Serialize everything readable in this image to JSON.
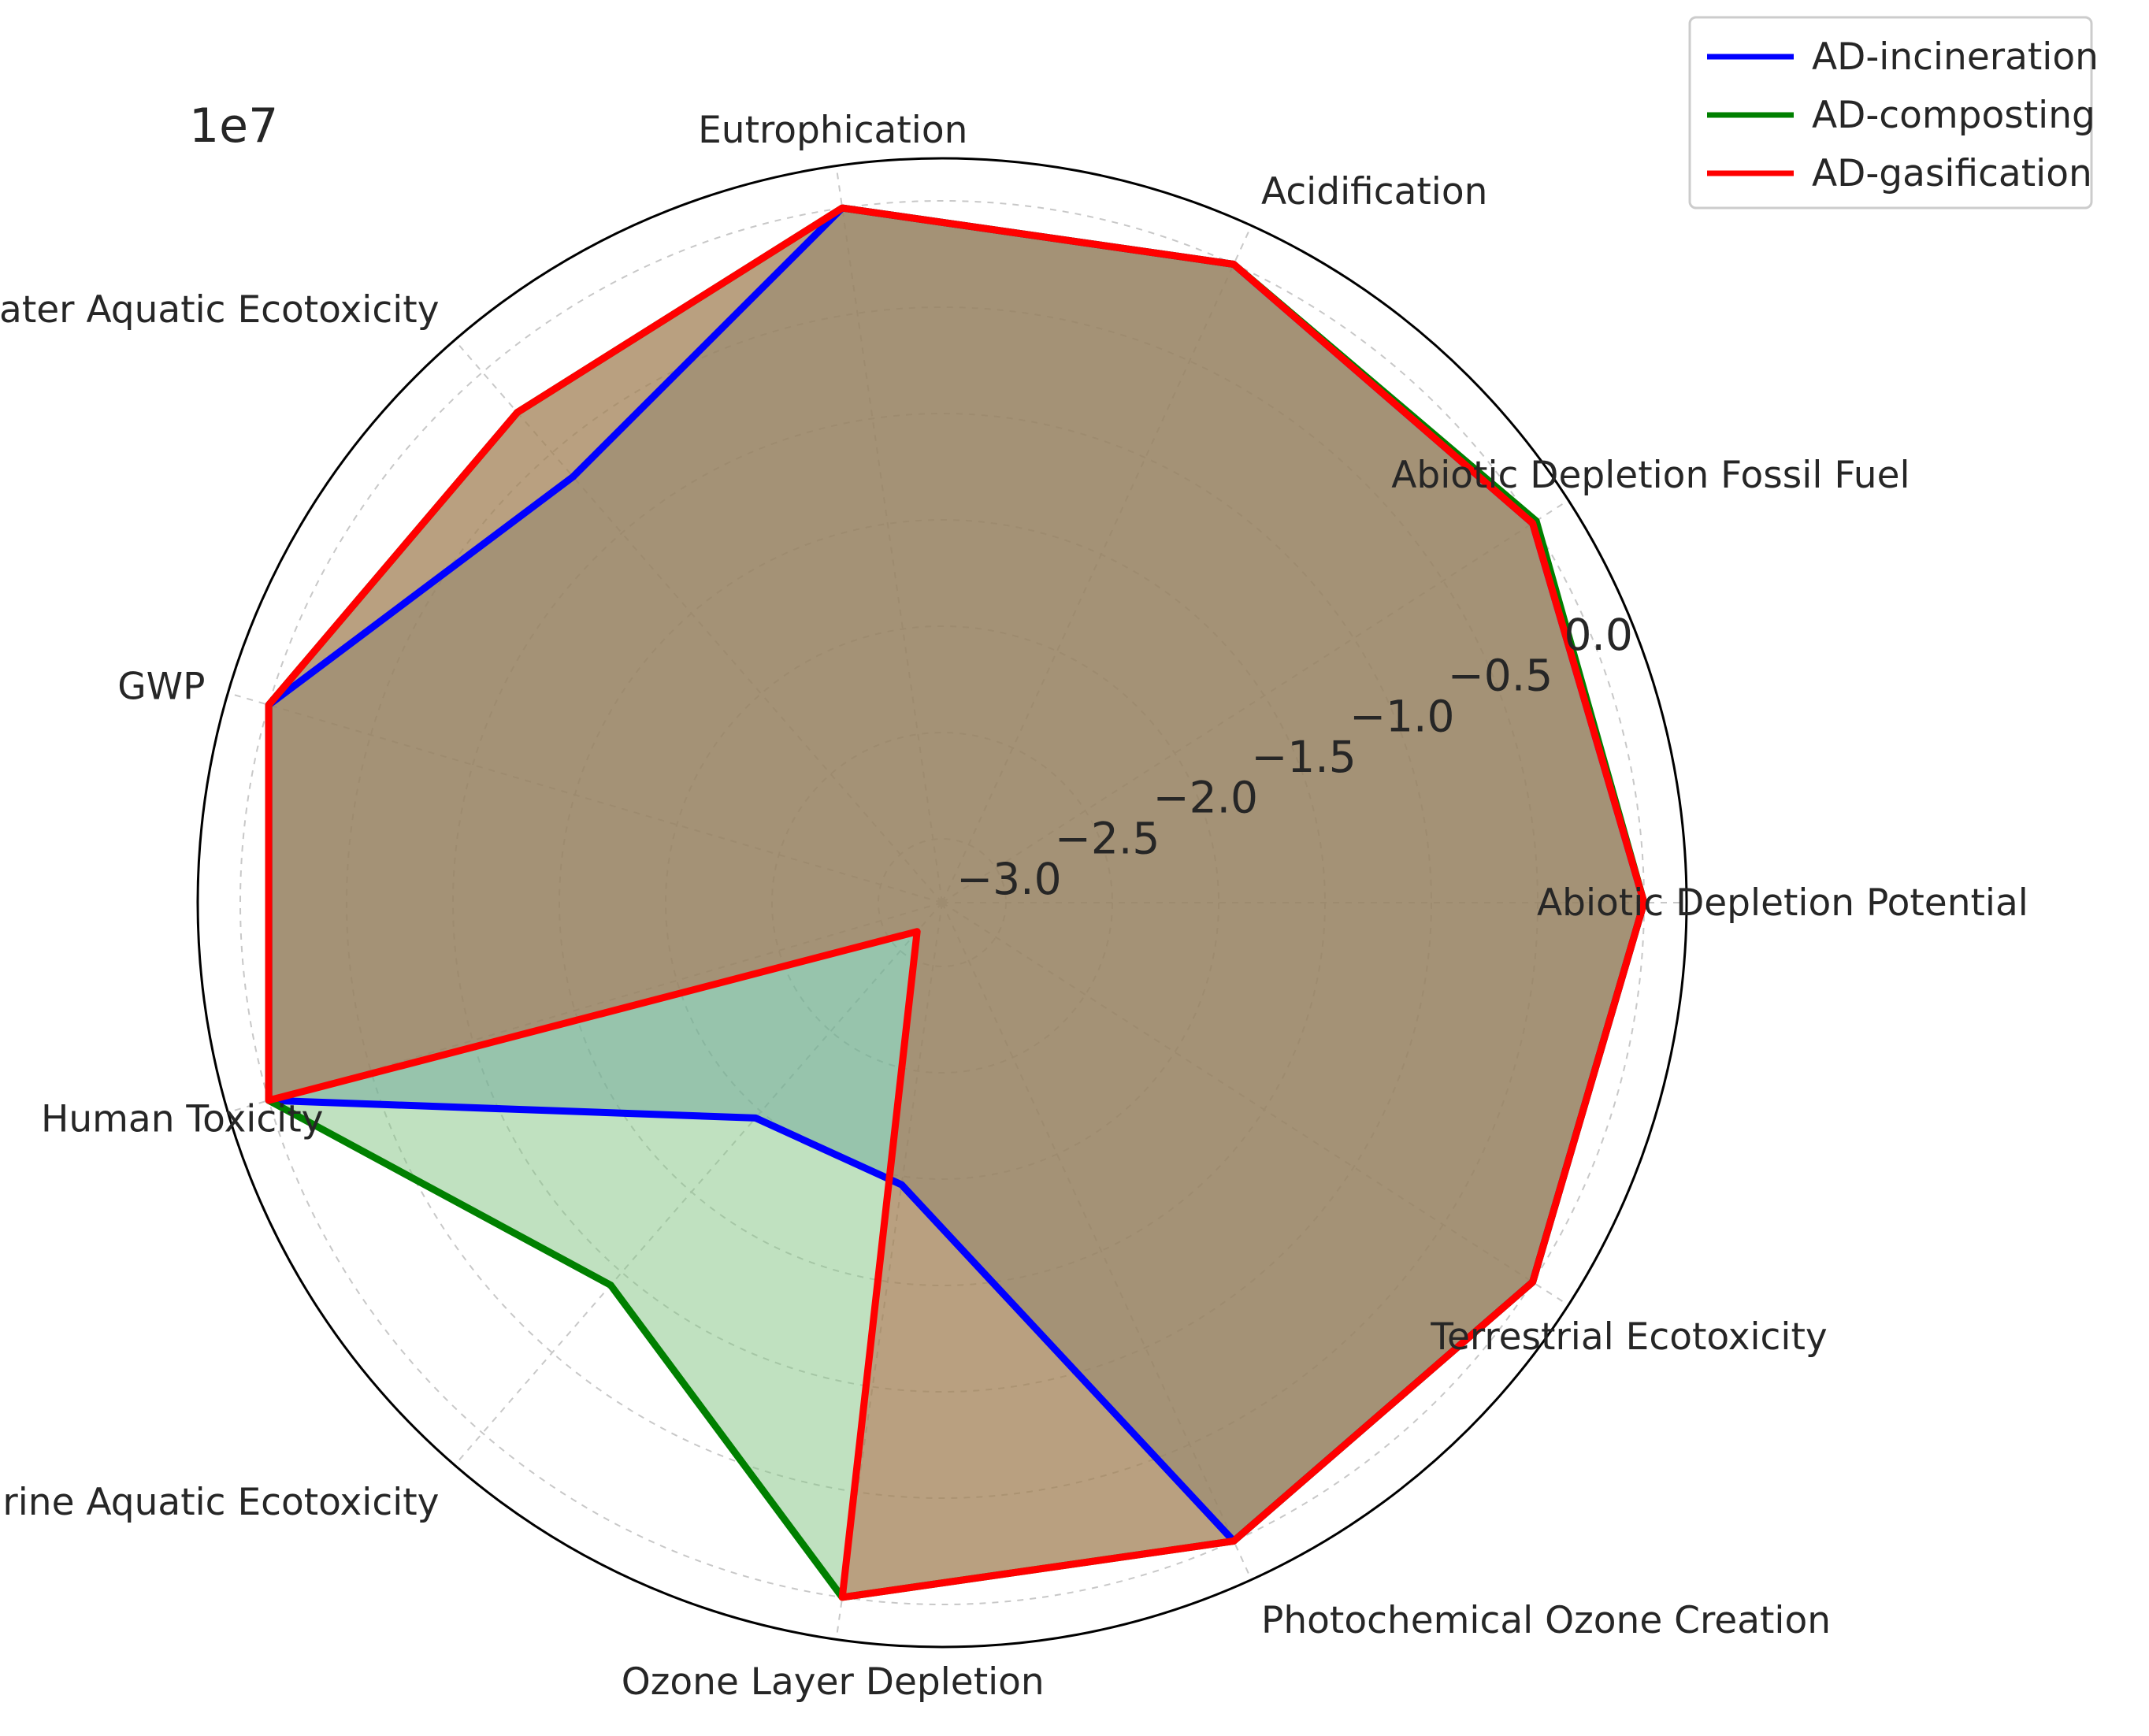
{
  "chart_data": {
    "type": "radar",
    "axes": [
      "Abiotic Depletion Potential",
      "Abiotic Depletion Fossil Fuel",
      "Acidification",
      "Eutrophication",
      "Freshwater Aquatic Ecotoxicity",
      "GWP",
      "Human Toxicity",
      "Marine Aquatic Ecotoxicity",
      "Ozone Layer Depletion",
      "Photochemical Ozone Creation",
      "Terrestrial Ecotoxicity"
    ],
    "radial_ticks": [
      "−3.0",
      "−2.5",
      "−2.0",
      "−1.5",
      "−1.0",
      "−0.5",
      "0.0"
    ],
    "radial_tick_values": [
      -3.0,
      -2.5,
      -2.0,
      -1.5,
      -1.0,
      -0.5,
      0.0
    ],
    "rlim": [
      -3.3,
      0.2
    ],
    "scale_label": "1e7",
    "grid": true,
    "legend_position": "top-right",
    "series": [
      {
        "name": "AD-incineration",
        "color": "#0000ff",
        "fill": "#5a8ab0",
        "values": [
          0.0,
          0.0,
          0.0,
          0.0,
          -0.65,
          0.0,
          0.0,
          -1.96,
          -1.96,
          0.0,
          0.0
        ]
      },
      {
        "name": "AD-composting",
        "color": "#008000",
        "fill": "#82c482",
        "values": [
          0.0,
          0.02,
          0.0,
          0.0,
          -0.25,
          0.0,
          0.0,
          -0.92,
          0.0,
          0.0,
          0.0
        ]
      },
      {
        "name": "AD-gasification",
        "color": "#ff0000",
        "fill": "#b2603f",
        "values": [
          0.0,
          0.0,
          0.0,
          0.0,
          -0.25,
          0.0,
          0.0,
          -3.12,
          0.0,
          0.0,
          0.0
        ]
      }
    ]
  }
}
